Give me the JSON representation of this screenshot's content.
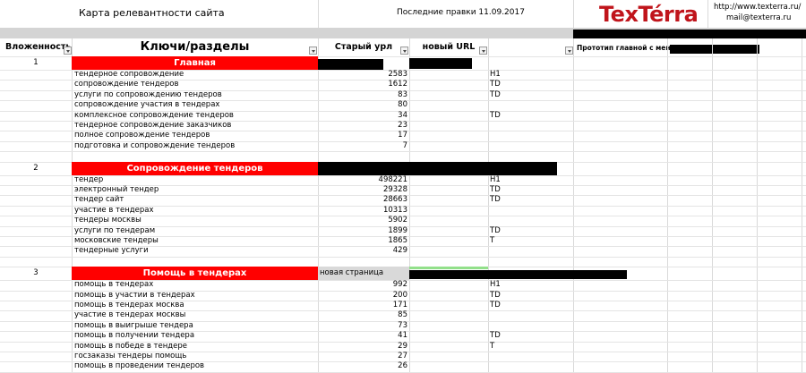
{
  "header": {
    "title": "Карта релевантности сайта",
    "last_edit": "Последние правки 11.09.2017",
    "logo": "TexTérra",
    "site": "http://www.texterra.ru/",
    "email": "mail@texterra.ru"
  },
  "columns": [
    "Вложенность",
    "Ключи/разделы",
    "Старый урл",
    "новый URL"
  ],
  "prototype_label": "Прототип главной с меню:",
  "sections": [
    {
      "number": 1,
      "title": "Главная",
      "rows": [
        {
          "keyword": "тендерное сопровождение",
          "count": 2583,
          "tag": "H1"
        },
        {
          "keyword": "сопровождение тендеров",
          "count": 1612,
          "tag": "TD"
        },
        {
          "keyword": "услуги по сопровождению тендеров",
          "count": 83,
          "tag": "TD"
        },
        {
          "keyword": "сопровождение участия в тендерах",
          "count": 80
        },
        {
          "keyword": "комплексное сопровождение тендеров",
          "count": 34,
          "tag": "TD"
        },
        {
          "keyword": "тендерное сопровождение заказчиков",
          "count": 23
        },
        {
          "keyword": "полное сопровождение тендеров",
          "count": 17
        },
        {
          "keyword": "подготовка и сопровождение тендеров",
          "count": 7
        }
      ]
    },
    {
      "number": 2,
      "title": "Сопровождение тендеров",
      "rows": [
        {
          "keyword": "тендер",
          "count": 498221,
          "tag": "H1"
        },
        {
          "keyword": "электронный тендер",
          "count": 29328,
          "tag": "TD"
        },
        {
          "keyword": "тендер сайт",
          "count": 28663,
          "tag": "TD"
        },
        {
          "keyword": "участие в тендерах",
          "count": 10313
        },
        {
          "keyword": "тендеры москвы",
          "count": 5902
        },
        {
          "keyword": "услуги по тендерам",
          "count": 1899,
          "tag": "TD"
        },
        {
          "keyword": "московские тендеры",
          "count": 1865,
          "tag": "T"
        },
        {
          "keyword": "тендерные услуги",
          "count": 429
        }
      ]
    },
    {
      "number": 3,
      "title": "Помощь в тендерах",
      "old_url": "новая страница",
      "rows": [
        {
          "keyword": "помощь в тендерах",
          "count": 992,
          "tag": "H1"
        },
        {
          "keyword": "помощь в участии в тендерах",
          "count": 200,
          "tag": "TD"
        },
        {
          "keyword": "помощь в тендерах москва",
          "count": 171,
          "tag": "TD"
        },
        {
          "keyword": "участие в тендерах москвы",
          "count": 85
        },
        {
          "keyword": "помощь в выигрыше тендера",
          "count": 73
        },
        {
          "keyword": "помощь в получении тендера",
          "count": 41,
          "tag": "TD"
        },
        {
          "keyword": "помощь в победе в тендере",
          "count": 29,
          "tag": "T"
        },
        {
          "keyword": "госзаказы тендеры помощь",
          "count": 27
        },
        {
          "keyword": "помощь в проведении тендеров",
          "count": 26
        }
      ]
    }
  ]
}
